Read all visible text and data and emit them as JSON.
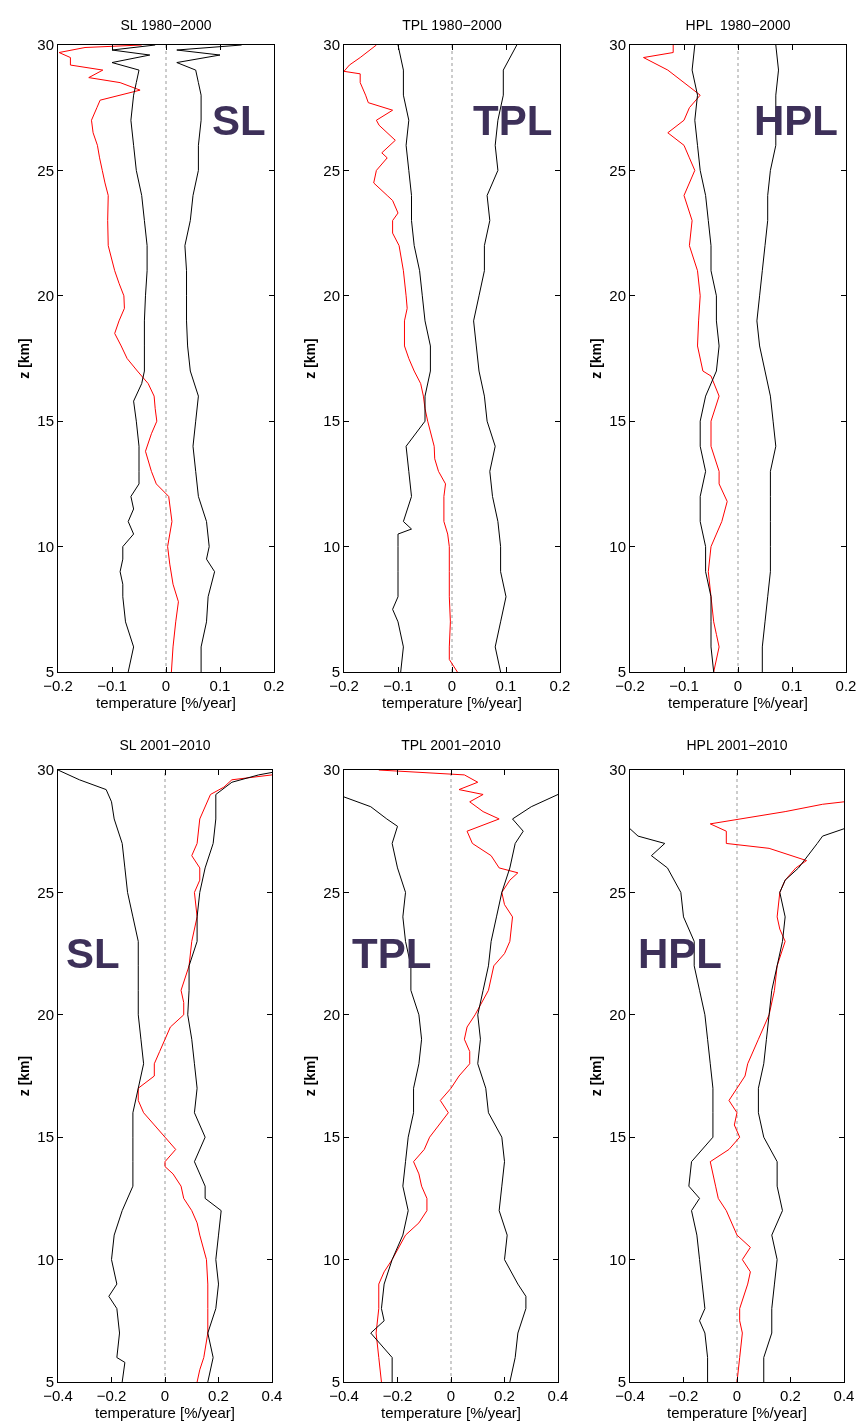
{
  "chart_data": [
    {
      "type": "line",
      "title": "SL 1980−2000",
      "xlabel": "temperature [%/year]",
      "ylabel": "z [km]",
      "annotations": [
        "SL"
      ],
      "xlim": [
        -0.2,
        0.2
      ],
      "xticks": [
        -0.2,
        -0.1,
        0,
        0.1,
        0.2
      ],
      "ylim": [
        5,
        30
      ],
      "yticks": [
        5,
        10,
        15,
        20,
        25,
        30
      ],
      "grid": false,
      "ref_lines": [
        {
          "axis": "x",
          "value": 0,
          "color": "#999999",
          "line_style": "dotted"
        }
      ],
      "series": [
        {
          "color": "#ff0000",
          "x": [
            0.01,
            0.013,
            0.018,
            0.023,
            0.013,
            0.007,
            0.003,
            0.011,
            0.005,
            -0.018,
            -0.027,
            -0.038,
            -0.027,
            -0.017,
            -0.02,
            -0.022,
            -0.033,
            -0.053,
            -0.072,
            -0.083,
            -0.095,
            -0.087,
            -0.077,
            -0.078,
            -0.087,
            -0.095,
            -0.107,
            -0.108,
            -0.107,
            -0.113,
            -0.118,
            -0.123,
            -0.127,
            -0.135,
            -0.138,
            -0.128,
            -0.122,
            -0.048,
            -0.085,
            -0.143,
            -0.117,
            -0.177,
            -0.177,
            -0.198,
            -0.15,
            -0.045
          ],
          "values": [
            5,
            6,
            7,
            7.8,
            8.5,
            9.3,
            10,
            11,
            12,
            12.5,
            13,
            13.8,
            14.5,
            15,
            15.5,
            16,
            16.5,
            17,
            17.5,
            18,
            18.5,
            19,
            19.5,
            20,
            20.5,
            21,
            22,
            23,
            24,
            24.5,
            25,
            25.5,
            26,
            26.5,
            27,
            27.5,
            27.8,
            28.2,
            28.5,
            28.7,
            29,
            29.2,
            29.5,
            29.7,
            29.9,
            30
          ]
        },
        {
          "color": "#000000",
          "x": [
            -0.07,
            -0.06,
            -0.075,
            -0.08,
            -0.08,
            -0.085,
            -0.08,
            -0.08,
            -0.06,
            -0.07,
            -0.06,
            -0.065,
            -0.05,
            -0.05,
            -0.05,
            -0.055,
            -0.06,
            -0.045,
            -0.04,
            -0.04,
            -0.04,
            -0.038,
            -0.035,
            -0.035,
            -0.04,
            -0.045,
            -0.055,
            -0.06,
            -0.065,
            -0.06,
            -0.055,
            -0.05,
            -0.1,
            -0.03,
            -0.1,
            -0.02
          ],
          "values": [
            5,
            6,
            7,
            8,
            8.5,
            9,
            9.5,
            10,
            10.5,
            11,
            11.5,
            12,
            12.5,
            13,
            14,
            15,
            15.8,
            16.5,
            17,
            18,
            19,
            20,
            21,
            22,
            23,
            24,
            25,
            26,
            27,
            28,
            28.5,
            29,
            29.3,
            29.6,
            29.8,
            30
          ]
        },
        {
          "color": "#000000",
          "x": [
            0.065,
            0.065,
            0.075,
            0.078,
            0.09,
            0.075,
            0.08,
            0.075,
            0.06,
            0.055,
            0.05,
            0.055,
            0.06,
            0.045,
            0.04,
            0.038,
            0.038,
            0.038,
            0.035,
            0.045,
            0.05,
            0.06,
            0.06,
            0.065,
            0.065,
            0.06,
            0.055,
            0.02,
            0.1,
            0.02,
            0.14
          ],
          "values": [
            5,
            6,
            7,
            8,
            9,
            9.5,
            10,
            11,
            12,
            13,
            14,
            15,
            16,
            17,
            18,
            19,
            20,
            21,
            22,
            23,
            24,
            25,
            26,
            27,
            28,
            28.5,
            29,
            29.3,
            29.6,
            29.8,
            30
          ]
        }
      ]
    },
    {
      "type": "line",
      "title": "TPL 1980−2000",
      "xlabel": "temperature [%/year]",
      "ylabel": "z [km]",
      "annotations": [
        "TPL"
      ],
      "xlim": [
        -0.2,
        0.2
      ],
      "xticks": [
        -0.2,
        -0.1,
        0,
        0.1,
        0.2
      ],
      "ylim": [
        5,
        30
      ],
      "yticks": [
        5,
        10,
        15,
        20,
        25,
        30
      ],
      "grid": false,
      "ref_lines": [
        {
          "axis": "x",
          "value": 0,
          "color": "#999999",
          "line_style": "dotted"
        }
      ],
      "series": [
        {
          "color": "#ff0000",
          "x": [
            0.01,
            -0.005,
            -0.005,
            -0.003,
            -0.005,
            -0.005,
            -0.005,
            -0.008,
            -0.015,
            -0.015,
            -0.012,
            -0.025,
            -0.032,
            -0.033,
            -0.045,
            -0.05,
            -0.053,
            -0.058,
            -0.07,
            -0.08,
            -0.088,
            -0.088,
            -0.083,
            -0.085,
            -0.09,
            -0.098,
            -0.11,
            -0.11,
            -0.1,
            -0.11,
            -0.12,
            -0.145,
            -0.14,
            -0.12,
            -0.13,
            -0.105,
            -0.135,
            -0.14,
            -0.11,
            -0.155,
            -0.16,
            -0.17,
            -0.17,
            -0.2,
            -0.19,
            -0.17,
            -0.14
          ],
          "values": [
            5,
            5.5,
            6,
            7,
            8,
            9,
            10,
            10.5,
            11,
            12,
            12.5,
            13,
            13.5,
            14,
            15,
            15.5,
            16,
            16.5,
            17,
            17.5,
            18,
            19,
            19.5,
            20,
            21,
            22,
            22.5,
            23,
            23.3,
            23.8,
            24,
            24.5,
            25,
            25.5,
            25.7,
            26.2,
            26.8,
            27,
            27.4,
            27.7,
            28,
            28.5,
            28.85,
            28.95,
            29.2,
            29.5,
            30
          ]
        },
        {
          "color": "#000000",
          "x": [
            -0.095,
            -0.09,
            -0.1,
            -0.11,
            -0.1,
            -0.1,
            -0.1,
            -0.1,
            -0.075,
            -0.09,
            -0.075,
            -0.08,
            -0.085,
            -0.05,
            -0.05,
            -0.04,
            -0.04,
            -0.05,
            -0.055,
            -0.06,
            -0.07,
            -0.075,
            -0.075,
            -0.08,
            -0.085,
            -0.08,
            -0.09,
            -0.09,
            -0.1
          ],
          "values": [
            5,
            6,
            7,
            7.5,
            8,
            9,
            10,
            10.5,
            10.7,
            11,
            12,
            13,
            14,
            15,
            16,
            17,
            18,
            19,
            20,
            21,
            22,
            23,
            24,
            25,
            26,
            27,
            28,
            29,
            30
          ]
        },
        {
          "color": "#000000",
          "x": [
            0.09,
            0.08,
            0.09,
            0.1,
            0.09,
            0.09,
            0.085,
            0.075,
            0.07,
            0.08,
            0.065,
            0.06,
            0.05,
            0.045,
            0.04,
            0.05,
            0.06,
            0.06,
            0.07,
            0.065,
            0.085,
            0.08,
            0.085,
            0.095,
            0.095,
            0.12
          ],
          "values": [
            5,
            6,
            7,
            8,
            9,
            10,
            11,
            12,
            13,
            14,
            15,
            16,
            17,
            18,
            19,
            20,
            21,
            22,
            23,
            24,
            25,
            26,
            27,
            28,
            29,
            30
          ]
        }
      ]
    },
    {
      "type": "line",
      "title": "HPL  1980−2000",
      "xlabel": "temperature [%/year]",
      "ylabel": "z [km]",
      "annotations": [
        "HPL"
      ],
      "xlim": [
        -0.2,
        0.2
      ],
      "xticks": [
        -0.2,
        -0.1,
        0,
        0.1,
        0.2
      ],
      "ylim": [
        5,
        30
      ],
      "yticks": [
        5,
        10,
        15,
        20,
        25,
        30
      ],
      "grid": false,
      "ref_lines": [
        {
          "axis": "x",
          "value": 0,
          "color": "#999999",
          "line_style": "dotted"
        }
      ],
      "series": [
        {
          "color": "#ff0000",
          "x": [
            -0.045,
            -0.035,
            -0.04,
            -0.045,
            -0.05,
            -0.055,
            -0.05,
            -0.04,
            -0.03,
            -0.02,
            -0.035,
            -0.035,
            -0.05,
            -0.05,
            -0.035,
            -0.05,
            -0.065,
            -0.075,
            -0.073,
            -0.07,
            -0.075,
            -0.09,
            -0.085,
            -0.1,
            -0.08,
            -0.09,
            -0.1,
            -0.13,
            -0.1,
            -0.09,
            -0.07,
            -0.1,
            -0.13,
            -0.175,
            -0.12,
            -0.12
          ],
          "values": [
            5,
            6,
            6.5,
            7,
            8,
            9,
            10,
            10.5,
            11,
            11.8,
            12.5,
            13,
            14,
            15,
            16,
            16.8,
            17,
            18,
            19,
            20,
            21,
            22,
            23,
            24,
            25,
            25.5,
            26,
            26.5,
            27,
            27.5,
            28,
            28.5,
            29,
            29.5,
            29.7,
            30
          ]
        },
        {
          "color": "#000000",
          "x": [
            -0.045,
            -0.05,
            -0.05,
            -0.05,
            -0.06,
            -0.06,
            -0.07,
            -0.07,
            -0.06,
            -0.07,
            -0.07,
            -0.06,
            -0.04,
            -0.035,
            -0.04,
            -0.04,
            -0.05,
            -0.05,
            -0.055,
            -0.06,
            -0.07,
            -0.075,
            -0.08,
            -0.075,
            -0.085,
            -0.08
          ],
          "values": [
            5,
            6,
            7,
            8,
            9,
            10,
            11,
            12,
            13,
            14,
            15,
            16,
            17,
            18,
            19,
            20,
            21,
            22,
            23,
            24,
            25,
            26,
            27,
            28,
            29,
            30
          ]
        },
        {
          "color": "#000000",
          "x": [
            0.045,
            0.045,
            0.05,
            0.055,
            0.06,
            0.06,
            0.06,
            0.06,
            0.06,
            0.07,
            0.065,
            0.06,
            0.05,
            0.04,
            0.035,
            0.04,
            0.045,
            0.05,
            0.055,
            0.055,
            0.06,
            0.07,
            0.07,
            0.07,
            0.075,
            0.07
          ],
          "values": [
            5,
            6,
            7,
            8,
            9,
            10,
            11,
            12,
            13,
            14,
            15,
            16,
            17,
            18,
            19,
            20,
            21,
            22,
            23,
            24,
            25,
            26,
            27,
            28,
            29,
            30
          ]
        }
      ]
    },
    {
      "type": "line",
      "title": "SL 2001−2010",
      "xlabel": "temperature [%/year]",
      "ylabel": "z [km]",
      "annotations": [
        "SL"
      ],
      "xlim": [
        -0.4,
        0.4
      ],
      "xticks": [
        -0.4,
        -0.2,
        0,
        0.2,
        0.4
      ],
      "ylim": [
        5,
        30
      ],
      "yticks": [
        5,
        10,
        15,
        20,
        25,
        30
      ],
      "grid": false,
      "ref_lines": [
        {
          "axis": "x",
          "value": 0,
          "color": "#999999",
          "line_style": "dotted"
        }
      ],
      "series": [
        {
          "color": "#ff0000",
          "x": [
            0.12,
            0.13,
            0.145,
            0.16,
            0.16,
            0.16,
            0.155,
            0.13,
            0.12,
            0.1,
            0.07,
            0.06,
            0.03,
            0.0,
            0.0,
            0.04,
            0.0,
            -0.04,
            -0.08,
            -0.1,
            -0.1,
            -0.04,
            -0.04,
            -0.02,
            0.0,
            0.02,
            0.07,
            0.07,
            0.06,
            0.09,
            0.1,
            0.12,
            0.11,
            0.13,
            0.13,
            0.1,
            0.12,
            0.13,
            0.17,
            0.22,
            0.25,
            0.4
          ],
          "values": [
            5,
            5.5,
            6,
            7,
            8,
            9,
            10,
            11,
            11.5,
            12,
            12.5,
            13,
            13.5,
            13.8,
            14,
            14.5,
            15,
            15.5,
            16,
            16.5,
            17,
            17.5,
            18,
            18.5,
            19,
            19.5,
            20,
            20.5,
            21,
            22,
            23,
            24,
            25,
            25.5,
            26,
            26.5,
            27,
            28,
            29,
            29.3,
            29.6,
            29.8
          ]
        },
        {
          "color": "#000000",
          "x": [
            -0.16,
            -0.15,
            -0.18,
            -0.17,
            -0.18,
            -0.21,
            -0.18,
            -0.2,
            -0.19,
            -0.16,
            -0.12,
            -0.12,
            -0.12,
            -0.12,
            -0.1,
            -0.08,
            -0.09,
            -0.1,
            -0.1,
            -0.1,
            -0.1,
            -0.12,
            -0.14,
            -0.15,
            -0.16,
            -0.19,
            -0.2,
            -0.22,
            -0.32,
            -0.4
          ],
          "values": [
            5,
            5.8,
            6,
            7,
            8,
            8.5,
            9,
            10,
            11,
            12,
            13,
            14,
            15,
            16,
            17,
            18,
            19,
            20,
            21,
            22,
            23,
            24,
            25,
            26,
            27,
            28,
            28.7,
            29.2,
            29.6,
            30
          ]
        },
        {
          "color": "#000000",
          "x": [
            0.16,
            0.18,
            0.16,
            0.19,
            0.2,
            0.19,
            0.2,
            0.21,
            0.15,
            0.15,
            0.11,
            0.15,
            0.11,
            0.12,
            0.11,
            0.1,
            0.085,
            0.09,
            0.09,
            0.12,
            0.12,
            0.13,
            0.15,
            0.18,
            0.19,
            0.19,
            0.25,
            0.35,
            0.4
          ],
          "values": [
            5,
            6,
            7,
            8,
            9,
            10,
            11,
            12,
            12.5,
            13,
            14,
            15,
            16,
            17,
            18,
            19,
            20,
            21,
            22,
            23,
            24,
            25,
            26,
            27,
            28,
            29,
            29.5,
            29.8,
            29.9
          ]
        }
      ]
    },
    {
      "type": "line",
      "title": "TPL 2001−2010",
      "xlabel": "temperature [%/year]",
      "ylabel": "z [km]",
      "annotations": [
        "TPL"
      ],
      "xlim": [
        -0.4,
        0.4
      ],
      "xticks": [
        -0.4,
        -0.2,
        0,
        0.2,
        0.4
      ],
      "ylim": [
        5,
        30
      ],
      "yticks": [
        5,
        10,
        15,
        20,
        25,
        30
      ],
      "grid": false,
      "ref_lines": [
        {
          "axis": "x",
          "value": 0,
          "color": "#999999",
          "line_style": "dotted"
        }
      ],
      "series": [
        {
          "color": "#ff0000",
          "x": [
            -0.26,
            -0.27,
            -0.28,
            -0.27,
            -0.27,
            -0.25,
            -0.22,
            -0.17,
            -0.12,
            -0.09,
            -0.09,
            -0.11,
            -0.12,
            -0.14,
            -0.1,
            -0.08,
            -0.01,
            -0.04,
            0.0,
            0.03,
            0.07,
            0.07,
            0.05,
            0.06,
            0.09,
            0.14,
            0.16,
            0.2,
            0.22,
            0.23,
            0.2,
            0.19,
            0.22,
            0.25,
            0.18,
            0.15,
            0.08,
            0.06,
            0.18,
            0.12,
            0.07,
            0.12,
            0.03,
            0.1,
            0.05,
            -0.27
          ],
          "values": [
            5,
            6,
            7,
            8,
            9,
            9.5,
            10,
            11,
            11.5,
            12,
            12.5,
            13,
            13.5,
            14,
            14.5,
            15,
            16,
            16.5,
            17,
            17.5,
            18,
            18.5,
            19,
            19.5,
            20,
            21,
            22,
            22.5,
            23,
            24,
            24.5,
            25,
            25.5,
            25.8,
            26,
            26.5,
            27,
            27.5,
            28,
            28.3,
            28.7,
            29,
            29.2,
            29.5,
            29.8,
            30
          ]
        },
        {
          "color": "#000000",
          "x": [
            -0.22,
            -0.22,
            -0.3,
            -0.25,
            -0.26,
            -0.25,
            -0.22,
            -0.18,
            -0.16,
            -0.18,
            -0.17,
            -0.16,
            -0.14,
            -0.14,
            -0.12,
            -0.11,
            -0.12,
            -0.15,
            -0.15,
            -0.17,
            -0.18,
            -0.17,
            -0.2,
            -0.22,
            -0.2,
            -0.24,
            -0.3,
            -0.4
          ],
          "values": [
            5,
            6,
            7,
            7.5,
            8,
            9,
            10,
            11,
            12,
            13,
            14,
            15,
            16,
            17,
            18,
            19,
            20,
            21,
            22,
            23,
            24,
            25,
            26,
            27,
            27.7,
            28,
            28.5,
            28.9
          ]
        },
        {
          "color": "#000000",
          "x": [
            0.22,
            0.24,
            0.25,
            0.28,
            0.28,
            0.25,
            0.2,
            0.21,
            0.18,
            0.19,
            0.2,
            0.19,
            0.14,
            0.13,
            0.1,
            0.11,
            0.1,
            0.12,
            0.14,
            0.15,
            0.17,
            0.19,
            0.22,
            0.24,
            0.27,
            0.23,
            0.3,
            0.4
          ],
          "values": [
            5,
            6,
            7,
            8,
            8.5,
            9,
            10,
            11,
            12,
            13,
            14,
            15,
            16,
            17,
            18,
            19,
            20,
            21,
            22,
            23,
            24,
            25,
            26,
            27,
            27.5,
            28,
            28.5,
            29
          ]
        }
      ]
    },
    {
      "type": "line",
      "title": "HPL 2001−2010",
      "xlabel": "temperature [%/year]",
      "ylabel": "z [km]",
      "annotations": [
        "HPL"
      ],
      "xlim": [
        -0.4,
        0.4
      ],
      "xticks": [
        -0.4,
        -0.2,
        0,
        0.2,
        0.4
      ],
      "ylim": [
        5,
        30
      ],
      "yticks": [
        5,
        10,
        15,
        20,
        25,
        30
      ],
      "grid": false,
      "ref_lines": [
        {
          "axis": "x",
          "value": 0,
          "color": "#999999",
          "line_style": "dotted"
        }
      ],
      "series": [
        {
          "color": "#ff0000",
          "x": [
            0.0,
            0.01,
            0.02,
            0.01,
            0.01,
            0.04,
            0.05,
            0.02,
            0.05,
            0.0,
            -0.04,
            -0.07,
            -0.08,
            -0.1,
            -0.03,
            0.01,
            -0.01,
            0.0,
            -0.03,
            0.0,
            0.03,
            0.04,
            0.08,
            0.12,
            0.14,
            0.15,
            0.18,
            0.16,
            0.15,
            0.16,
            0.18,
            0.22,
            0.26,
            0.12,
            -0.04,
            -0.04,
            -0.1,
            0.18,
            0.32,
            0.4
          ],
          "values": [
            5,
            6,
            7,
            7.5,
            8,
            9,
            9.5,
            10,
            10.5,
            11,
            12,
            12.5,
            13,
            14,
            14.5,
            15,
            15.5,
            16,
            16.5,
            17,
            17.5,
            18,
            19,
            20,
            21,
            22,
            23,
            23.5,
            24,
            25,
            25.5,
            26,
            26.3,
            26.8,
            27,
            27.5,
            27.8,
            28.3,
            28.6,
            28.7
          ]
        },
        {
          "color": "#000000",
          "x": [
            -0.11,
            -0.11,
            -0.12,
            -0.14,
            -0.12,
            -0.13,
            -0.14,
            -0.15,
            -0.17,
            -0.14,
            -0.18,
            -0.17,
            -0.09,
            -0.09,
            -0.09,
            -0.1,
            -0.11,
            -0.12,
            -0.14,
            -0.16,
            -0.16,
            -0.2,
            -0.21,
            -0.26,
            -0.32,
            -0.27,
            -0.37,
            -0.4
          ],
          "values": [
            5,
            6,
            7,
            7.5,
            8,
            9,
            10,
            11,
            12,
            12.5,
            13,
            14,
            15,
            16,
            17,
            18,
            19,
            20,
            21,
            22,
            23,
            24,
            25,
            26,
            26.5,
            27,
            27.3,
            27.6
          ]
        },
        {
          "color": "#000000",
          "x": [
            0.1,
            0.1,
            0.13,
            0.13,
            0.14,
            0.15,
            0.13,
            0.17,
            0.15,
            0.15,
            0.1,
            0.08,
            0.08,
            0.1,
            0.11,
            0.12,
            0.13,
            0.15,
            0.17,
            0.18,
            0.16,
            0.18,
            0.23,
            0.3,
            0.32,
            0.4
          ],
          "values": [
            5,
            6,
            7,
            8,
            9,
            10,
            11,
            12,
            13,
            14,
            15,
            16,
            17,
            18,
            19,
            20,
            21,
            22,
            23,
            24,
            25,
            25.5,
            26,
            27,
            27.3,
            27.6
          ]
        }
      ]
    }
  ]
}
